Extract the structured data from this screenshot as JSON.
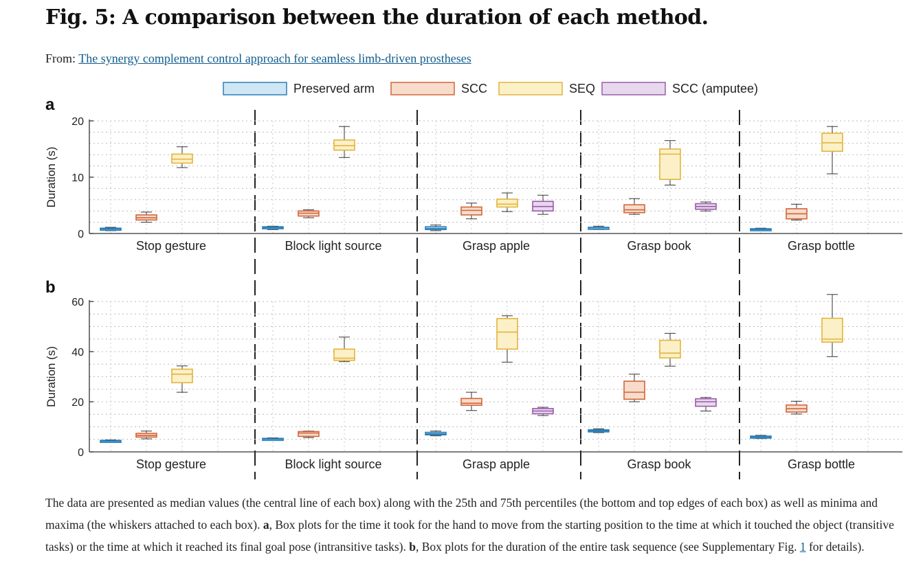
{
  "header": {
    "title": "Fig. 5: A comparison between the duration of each method.",
    "from_prefix": "From:",
    "from_link": "The synergy complement control approach for seamless limb-driven prostheses"
  },
  "legend": [
    {
      "label": "Preserved arm",
      "fill": "#cfe6f5",
      "stroke": "#2a7fb8"
    },
    {
      "label": "SCC",
      "fill": "#f7dccc",
      "stroke": "#d2653a"
    },
    {
      "label": "SEQ",
      "fill": "#fbf0c8",
      "stroke": "#e3b43c"
    },
    {
      "label": "SCC (amputee)",
      "fill": "#e8d8ee",
      "stroke": "#9a5bab"
    }
  ],
  "chart_data": [
    {
      "panel": "a",
      "type": "box",
      "ylabel": "Duration (s)",
      "ylim": [
        0,
        20
      ],
      "yticks": [
        0,
        10,
        20
      ],
      "categories": [
        "Stop gesture",
        "Block light source",
        "Grasp apple",
        "Grasp book",
        "Grasp bottle"
      ],
      "series": [
        {
          "name": "Preserved arm",
          "boxes": [
            {
              "min": 0.5,
              "q1": 0.65,
              "median": 0.8,
              "q3": 0.95,
              "max": 1.1
            },
            {
              "min": 0.7,
              "q1": 0.9,
              "median": 1.05,
              "q3": 1.2,
              "max": 1.3
            },
            {
              "min": 0.5,
              "q1": 0.7,
              "median": 0.9,
              "q3": 1.2,
              "max": 1.5
            },
            {
              "min": 0.7,
              "q1": 0.85,
              "median": 1.0,
              "q3": 1.1,
              "max": 1.3
            },
            {
              "min": 0.5,
              "q1": 0.6,
              "median": 0.7,
              "q3": 0.85,
              "max": 0.95
            }
          ]
        },
        {
          "name": "SCC",
          "boxes": [
            {
              "min": 2.0,
              "q1": 2.4,
              "median": 2.8,
              "q3": 3.3,
              "max": 3.8
            },
            {
              "min": 2.8,
              "q1": 3.1,
              "median": 3.6,
              "q3": 4.0,
              "max": 4.2
            },
            {
              "min": 2.6,
              "q1": 3.3,
              "median": 4.1,
              "q3": 4.7,
              "max": 5.4
            },
            {
              "min": 3.4,
              "q1": 3.7,
              "median": 4.2,
              "q3": 5.1,
              "max": 6.2
            },
            {
              "min": 2.4,
              "q1": 2.6,
              "median": 3.5,
              "q3": 4.4,
              "max": 5.2
            }
          ]
        },
        {
          "name": "SEQ",
          "boxes": [
            {
              "min": 11.7,
              "q1": 12.5,
              "median": 13.2,
              "q3": 14.1,
              "max": 15.4
            },
            {
              "min": 13.5,
              "q1": 14.8,
              "median": 15.6,
              "q3": 16.6,
              "max": 19.0
            },
            {
              "min": 3.9,
              "q1": 4.7,
              "median": 5.2,
              "q3": 6.1,
              "max": 7.2
            },
            {
              "min": 8.6,
              "q1": 9.6,
              "median": 14.1,
              "q3": 15.0,
              "max": 16.5
            },
            {
              "min": 10.6,
              "q1": 14.6,
              "median": 16.1,
              "q3": 17.8,
              "max": 19.0
            }
          ]
        },
        {
          "name": "SCC (amputee)",
          "boxes": [
            null,
            null,
            {
              "min": 3.4,
              "q1": 4.0,
              "median": 4.8,
              "q3": 5.7,
              "max": 6.8
            },
            {
              "min": 4.0,
              "q1": 4.3,
              "median": 4.8,
              "q3": 5.3,
              "max": 5.6
            },
            null
          ]
        }
      ]
    },
    {
      "panel": "b",
      "type": "box",
      "ylabel": "Duration (s)",
      "ylim": [
        0,
        60
      ],
      "yticks": [
        0,
        20,
        40,
        60
      ],
      "categories": [
        "Stop gesture",
        "Block light source",
        "Grasp apple",
        "Grasp book",
        "Grasp bottle"
      ],
      "series": [
        {
          "name": "Preserved arm",
          "boxes": [
            {
              "min": 3.9,
              "q1": 4.1,
              "median": 4.3,
              "q3": 4.6,
              "max": 4.8
            },
            {
              "min": 4.7,
              "q1": 4.9,
              "median": 5.1,
              "q3": 5.4,
              "max": 5.6
            },
            {
              "min": 6.4,
              "q1": 6.8,
              "median": 7.2,
              "q3": 7.8,
              "max": 8.3
            },
            {
              "min": 7.7,
              "q1": 8.0,
              "median": 8.4,
              "q3": 8.8,
              "max": 9.2
            },
            {
              "min": 5.3,
              "q1": 5.6,
              "median": 5.9,
              "q3": 6.3,
              "max": 6.6
            }
          ]
        },
        {
          "name": "SCC",
          "boxes": [
            {
              "min": 5.2,
              "q1": 5.9,
              "median": 6.6,
              "q3": 7.4,
              "max": 8.3
            },
            {
              "min": 5.7,
              "q1": 6.2,
              "median": 7.5,
              "q3": 8.1,
              "max": 8.3
            },
            {
              "min": 16.5,
              "q1": 18.6,
              "median": 19.4,
              "q3": 21.3,
              "max": 23.8
            },
            {
              "min": 20.0,
              "q1": 21.0,
              "median": 23.8,
              "q3": 28.2,
              "max": 31.0
            },
            {
              "min": 15.1,
              "q1": 15.9,
              "median": 17.2,
              "q3": 18.7,
              "max": 20.2
            }
          ]
        },
        {
          "name": "SEQ",
          "boxes": [
            {
              "min": 23.8,
              "q1": 27.6,
              "median": 31.0,
              "q3": 33.0,
              "max": 34.3
            },
            {
              "min": 36.0,
              "q1": 36.5,
              "median": 37.4,
              "q3": 41.0,
              "max": 45.8
            },
            {
              "min": 35.8,
              "q1": 41.0,
              "median": 47.8,
              "q3": 53.2,
              "max": 54.3
            },
            {
              "min": 34.2,
              "q1": 37.5,
              "median": 39.4,
              "q3": 44.5,
              "max": 47.3
            },
            {
              "min": 38.0,
              "q1": 43.8,
              "median": 45.0,
              "q3": 53.3,
              "max": 62.8
            }
          ]
        },
        {
          "name": "SCC (amputee)",
          "boxes": [
            null,
            null,
            {
              "min": 14.5,
              "q1": 15.2,
              "median": 16.3,
              "q3": 17.3,
              "max": 17.8
            },
            {
              "min": 16.3,
              "q1": 18.2,
              "median": 20.0,
              "q3": 21.2,
              "max": 21.7
            },
            null
          ]
        }
      ]
    }
  ],
  "caption": {
    "part1": "The data are presented as median values (the central line of each box) along with the 25th and 75th percentiles (the bottom and top edges of each box) as well as minima and maxima (the whiskers attached to each box). ",
    "bold_a": "a",
    "part2": ", Box plots for the time it took for the hand to move from the starting position to the time at which it touched the object (transitive tasks) or the time at which it reached its final goal pose (intransitive tasks). ",
    "bold_b": "b",
    "part3": ", Box plots for the duration of the entire task sequence (see Supplementary Fig. ",
    "fig_link": "1",
    "part4": " for details)."
  }
}
